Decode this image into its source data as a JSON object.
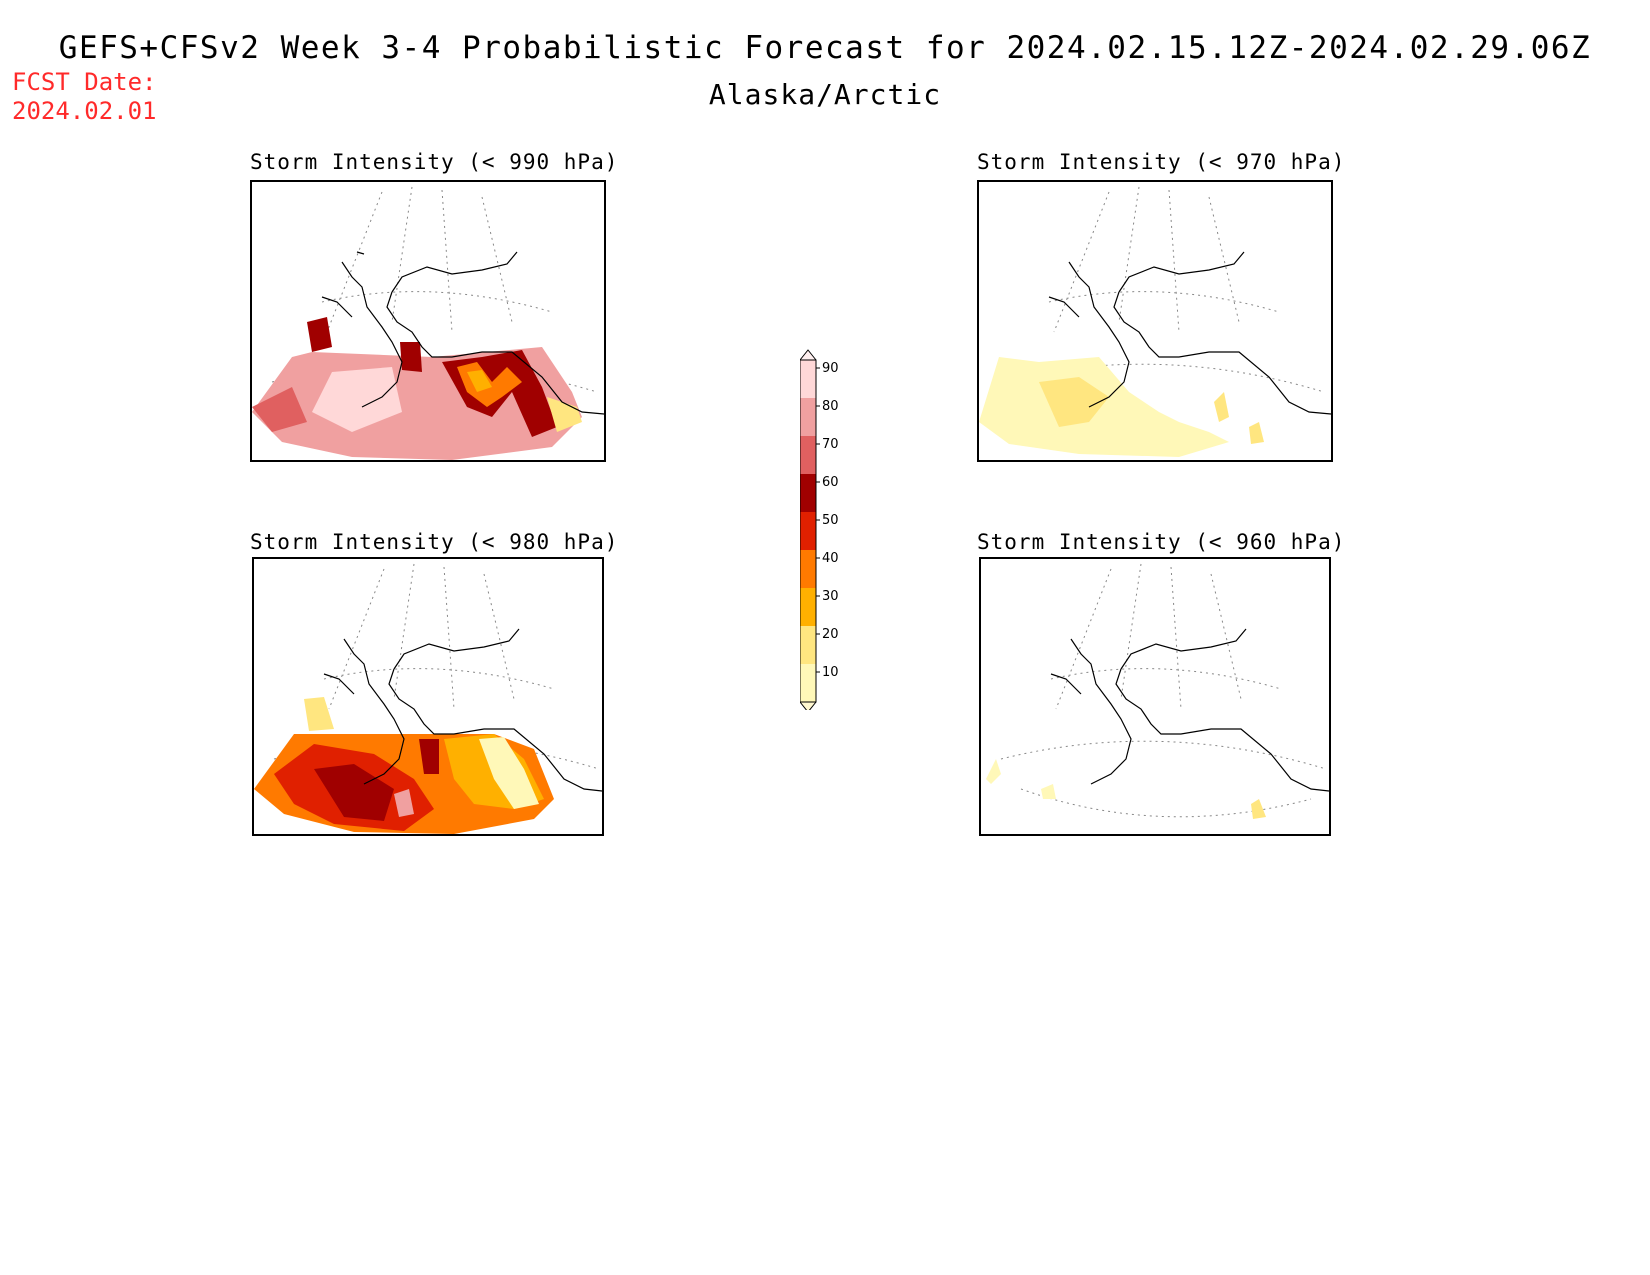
{
  "title": "GEFS+CFSv2 Week 3-4 Probabilistic Forecast for 2024.02.15.12Z-2024.02.29.06Z",
  "subtitle": "Alaska/Arctic",
  "fcst_date_label": "FCST Date:",
  "fcst_date_value": "2024.02.01",
  "panels": [
    {
      "id": "p990",
      "title": "Storm Intensity (< 990 hPa)",
      "level": "990 hPa",
      "dominant_probability": "80-90"
    },
    {
      "id": "p970",
      "title": "Storm Intensity (< 970 hPa)",
      "level": "970 hPa",
      "dominant_probability": "10-20"
    },
    {
      "id": "p980",
      "title": "Storm Intensity (< 980 hPa)",
      "level": "980 hPa",
      "dominant_probability": "40-70"
    },
    {
      "id": "p960",
      "title": "Storm Intensity (< 960 hPa)",
      "level": "960 hPa",
      "dominant_probability": "<10"
    }
  ],
  "colorbar": {
    "levels": [
      "10",
      "20",
      "30",
      "40",
      "50",
      "60",
      "70",
      "80",
      "90"
    ],
    "colors": [
      "#fff8b8",
      "#ffe680",
      "#ffb000",
      "#ff7a00",
      "#e02000",
      "#a00000",
      "#e06060",
      "#f0a0a0",
      "#ffd8d8"
    ]
  }
}
